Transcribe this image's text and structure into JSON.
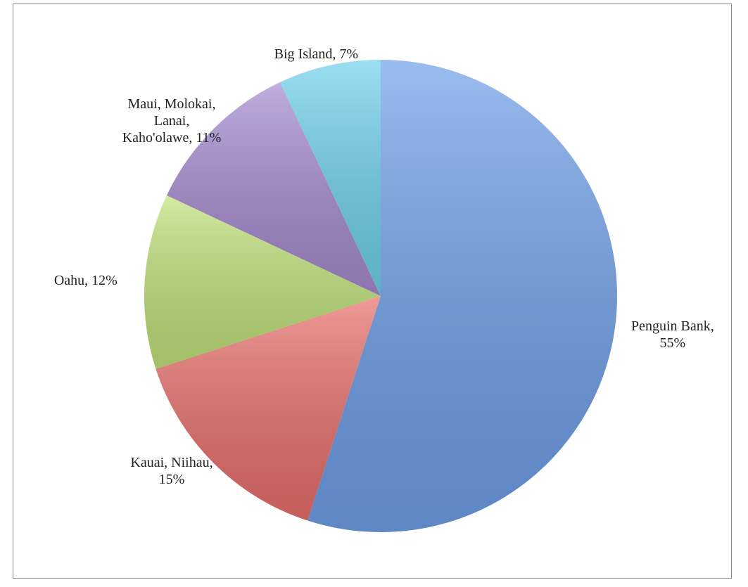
{
  "chart_data": {
    "type": "pie",
    "values": [
      55,
      15,
      12,
      11,
      7
    ],
    "value_labels": [
      "Penguin Bank, 55%",
      "Kauai, Niihau, 15%",
      "Oahu, 12%",
      "Maui, Molokai, Lanai, Kaho'olawe, 11%",
      "Big Island, 7%"
    ],
    "colors": [
      "#6f9fe8",
      "#e8706c",
      "#c0e27a",
      "#a68bd0",
      "#6fd2ec"
    ]
  }
}
